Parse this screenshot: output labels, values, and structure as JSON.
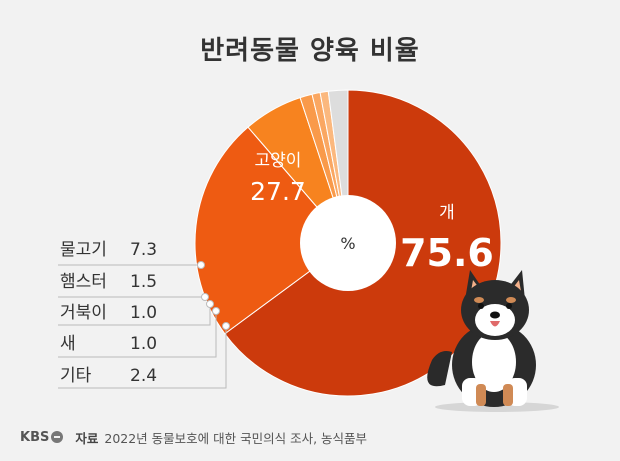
{
  "title": "반려동물 양육 비율",
  "chart_data": {
    "type": "pie",
    "title": "반려동물 양육 비율",
    "unit": "%",
    "categories": [
      "개",
      "고양이",
      "물고기",
      "햄스터",
      "거북이",
      "새",
      "기타"
    ],
    "values": [
      75.6,
      27.7,
      7.3,
      1.5,
      1.0,
      1.0,
      2.4
    ],
    "colors": [
      "#cc3a0c",
      "#ee5b12",
      "#f7831f",
      "#f99a4a",
      "#faa762",
      "#fbb87e",
      "#dddddd"
    ],
    "labels": {
      "dog": {
        "name": "개",
        "value": "75.6"
      },
      "cat": {
        "name": "고양이",
        "value": "27.7"
      },
      "fish": {
        "name": "물고기",
        "value": "7.3"
      },
      "hamster": {
        "name": "햄스터",
        "value": "1.5"
      },
      "turtle": {
        "name": "거북이",
        "value": "1.0"
      },
      "bird": {
        "name": "새",
        "value": "1.0"
      },
      "other": {
        "name": "기타",
        "value": "2.4"
      }
    }
  },
  "footer": {
    "logo": "KBS",
    "source_key": "자료",
    "source_text": "2022년 동물보호에 대한 국민의식 조사, 농식품부"
  },
  "icons": {
    "logo": "kbs-logo-icon",
    "dog": "shiba-dog-illustration"
  }
}
